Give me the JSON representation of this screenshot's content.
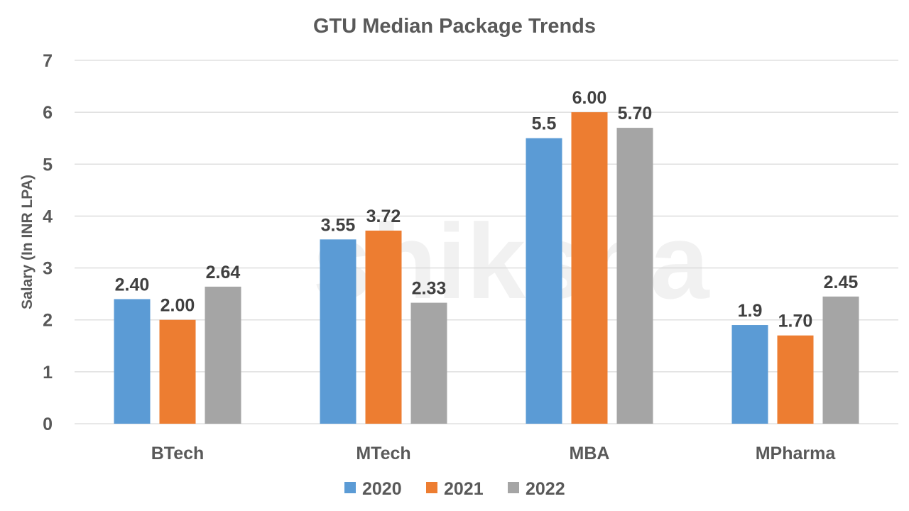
{
  "chart_data": {
    "type": "bar",
    "title": "GTU Median Package Trends",
    "xlabel": "",
    "ylabel": "Salary (In INR LPA)",
    "ylim": [
      0,
      7
    ],
    "yticks": [
      0,
      1,
      2,
      3,
      4,
      5,
      6,
      7
    ],
    "grid": true,
    "legend_position": "bottom",
    "categories": [
      "BTech",
      "MTech",
      "MBA",
      "MPharma"
    ],
    "series": [
      {
        "name": "2020",
        "color": "#5B9BD5",
        "values": [
          2.4,
          3.55,
          5.5,
          1.9
        ],
        "labels": [
          "2.40",
          "3.55",
          "5.5",
          "1.9"
        ]
      },
      {
        "name": "2021",
        "color": "#ED7D31",
        "values": [
          2.0,
          3.72,
          6.0,
          1.7
        ],
        "labels": [
          "2.00",
          "3.72",
          "6.00",
          "1.70"
        ]
      },
      {
        "name": "2022",
        "color": "#A5A5A5",
        "values": [
          2.64,
          2.33,
          5.7,
          2.45
        ],
        "labels": [
          "2.64",
          "2.33",
          "5.70",
          "2.45"
        ]
      }
    ],
    "watermark": "shiksha"
  }
}
